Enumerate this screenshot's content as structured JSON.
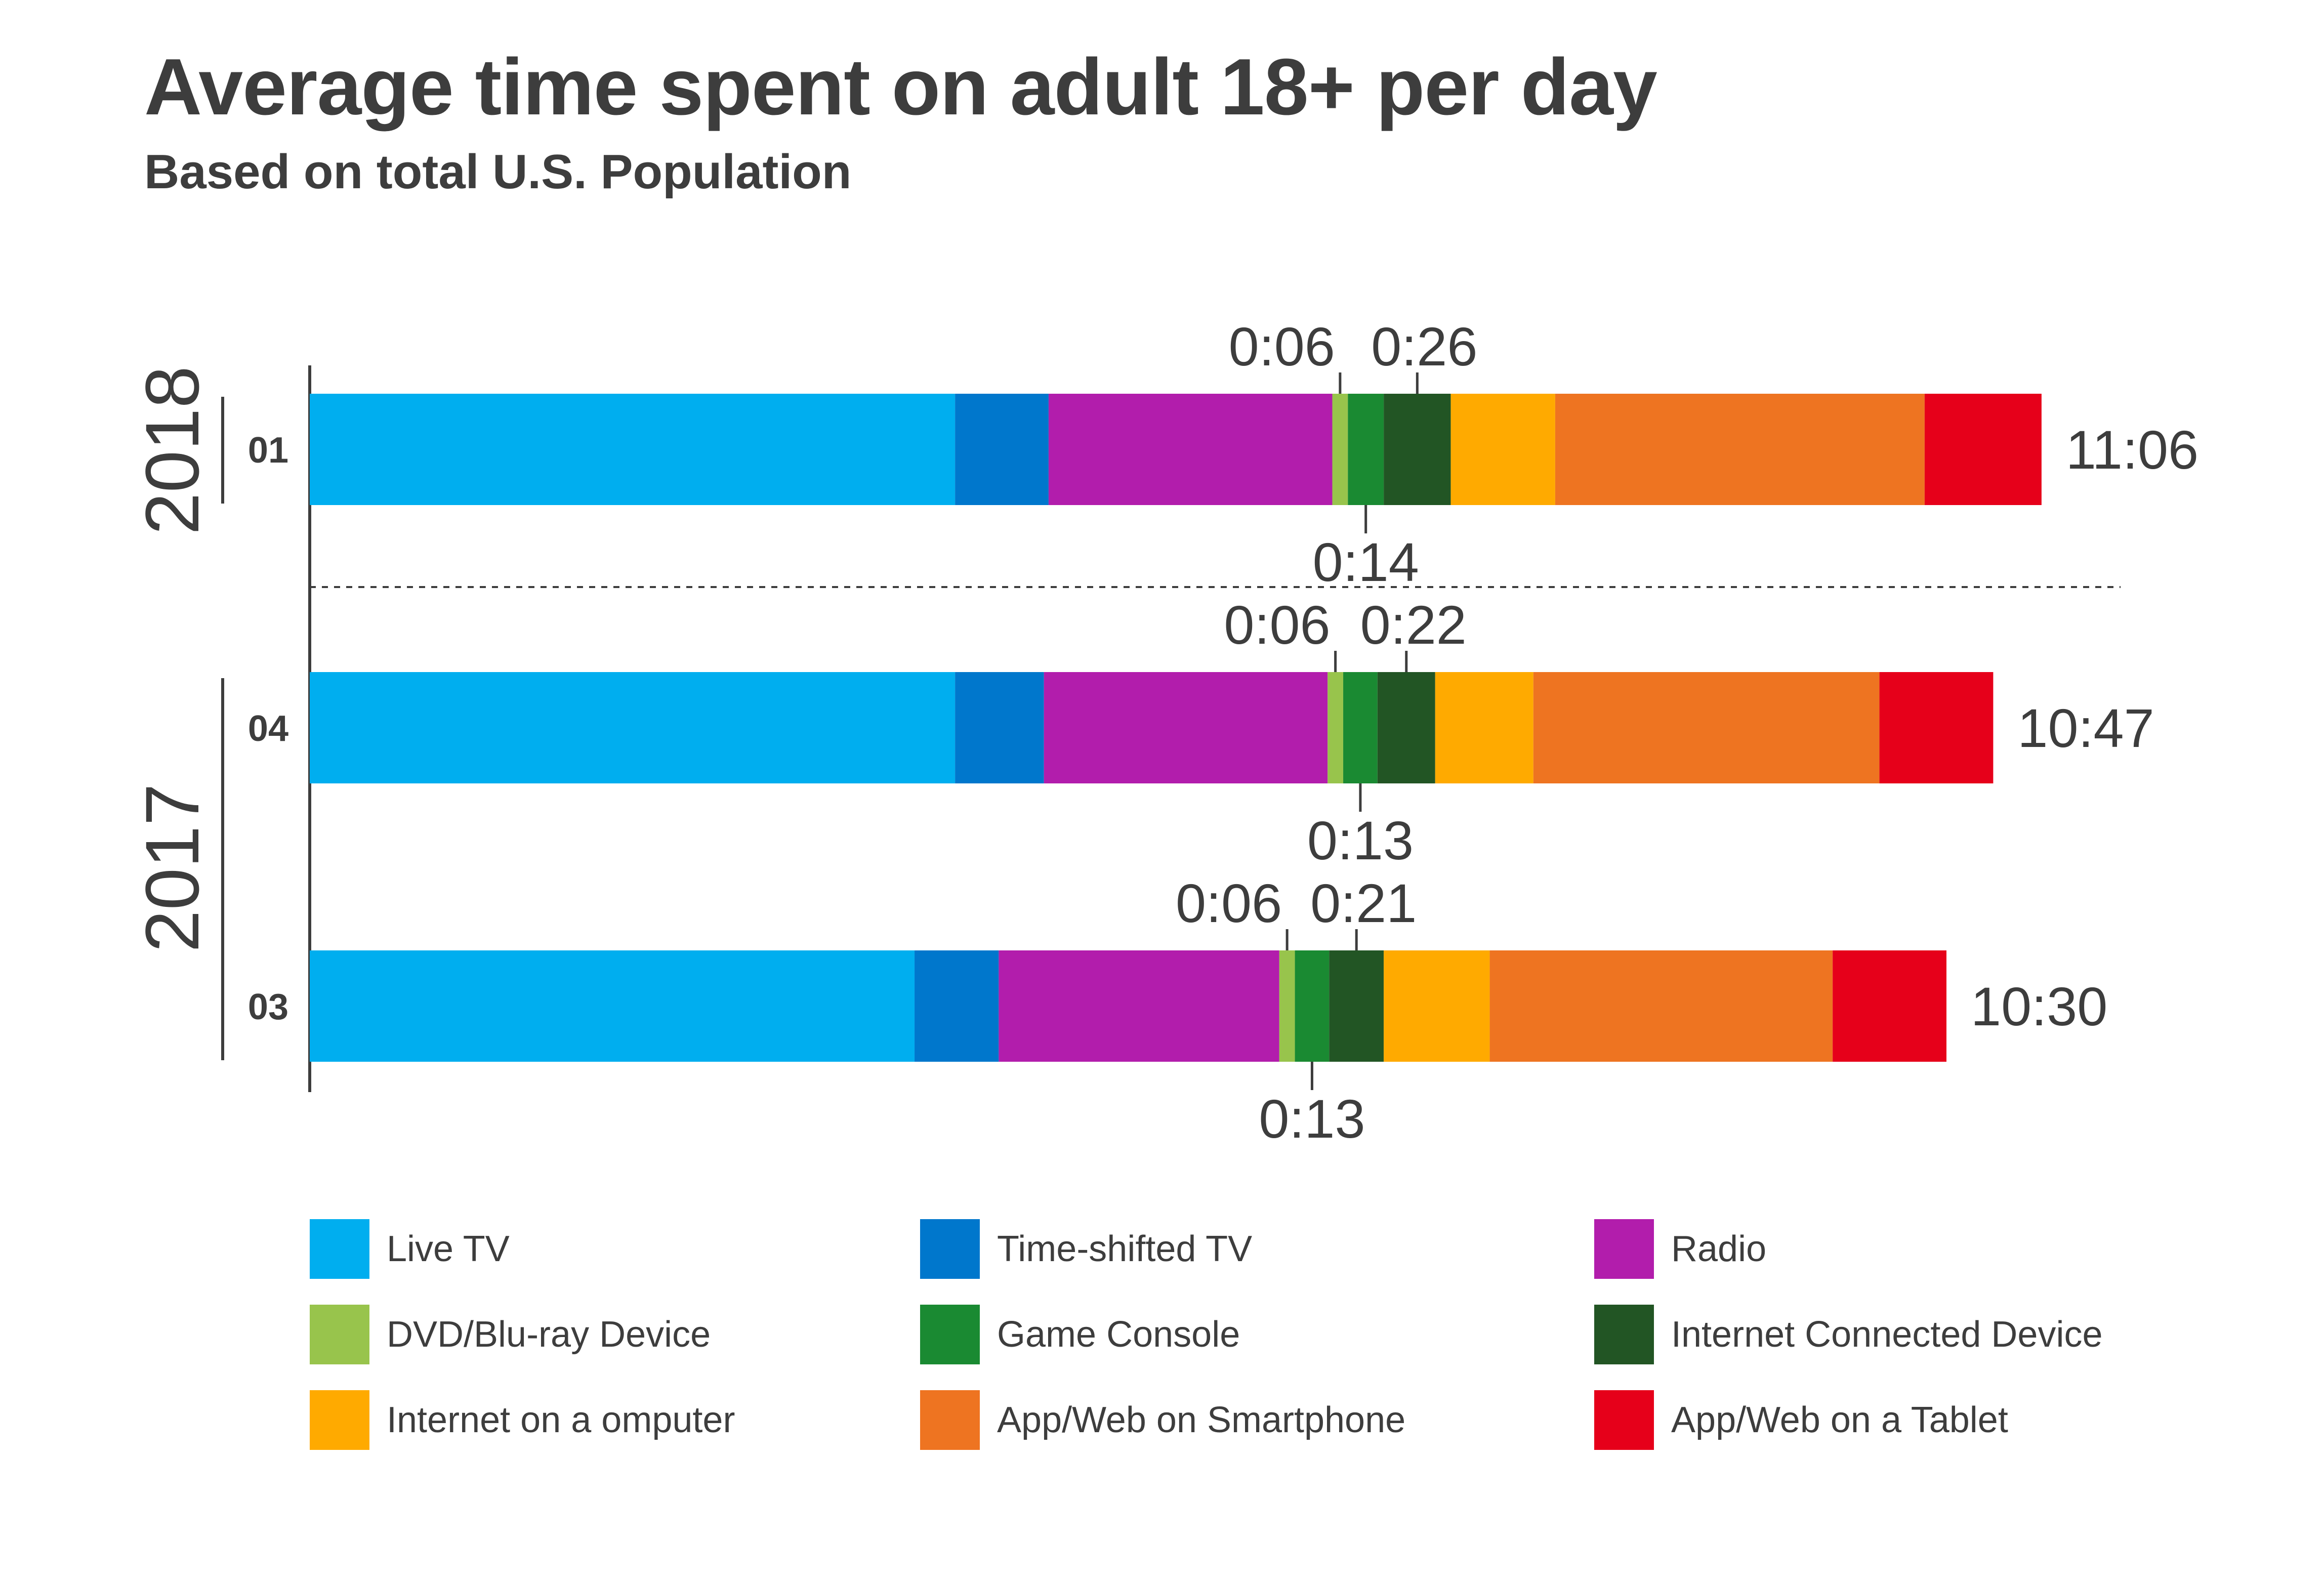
{
  "chart_data": {
    "type": "bar",
    "orientation": "horizontal",
    "stacked": true,
    "title": "Average time spent on adult 18+ per day",
    "subtitle": "Based on total U.S. Population",
    "group_labels": [
      "2018",
      "2017"
    ],
    "categories": [
      "01",
      "04",
      "03"
    ],
    "category_groups": [
      "2018",
      "2017",
      "2017"
    ],
    "totals": [
      "11:06",
      "10:47",
      "10:30"
    ],
    "series": [
      {
        "name": "Live TV",
        "color": "#00AEEF",
        "values": [
          4.14,
          4.14,
          3.88
        ]
      },
      {
        "name": "Time-shifted TV",
        "color": "#0077CC",
        "values": [
          0.6,
          0.57,
          0.54
        ]
      },
      {
        "name": "Radio",
        "color": "#B21DAC",
        "values": [
          1.82,
          1.82,
          1.8
        ]
      },
      {
        "name": "DVD/Blu-ray Device",
        "color": "#98C44C",
        "values": [
          0.1,
          0.1,
          0.1
        ]
      },
      {
        "name": "Game Console",
        "color": "#1A8A32",
        "values": [
          0.23,
          0.22,
          0.22
        ]
      },
      {
        "name": "Internet Connected Device",
        "color": "#225524",
        "values": [
          0.43,
          0.37,
          0.35
        ]
      },
      {
        "name": "Internet on a omputer",
        "color": "#FFAA00",
        "values": [
          0.67,
          0.63,
          0.68
        ]
      },
      {
        "name": "App/Web on Smartphone",
        "color": "#EE7421",
        "values": [
          2.37,
          2.22,
          2.2
        ]
      },
      {
        "name": "App/Web on a Tablet",
        "color": "#E6001A",
        "values": [
          0.75,
          0.73,
          0.73
        ]
      }
    ],
    "annotations": [
      {
        "category": "01",
        "dvd": "0:06",
        "game_console": "0:14",
        "internet_device": "0:26"
      },
      {
        "category": "04",
        "dvd": "0:06",
        "game_console": "0:13",
        "internet_device": "0:22"
      },
      {
        "category": "03",
        "dvd": "0:06",
        "game_console": "0:13",
        "internet_device": "0:21"
      }
    ],
    "xlim": [
      0,
      11.1
    ],
    "grid": false,
    "legend_position": "bottom"
  }
}
